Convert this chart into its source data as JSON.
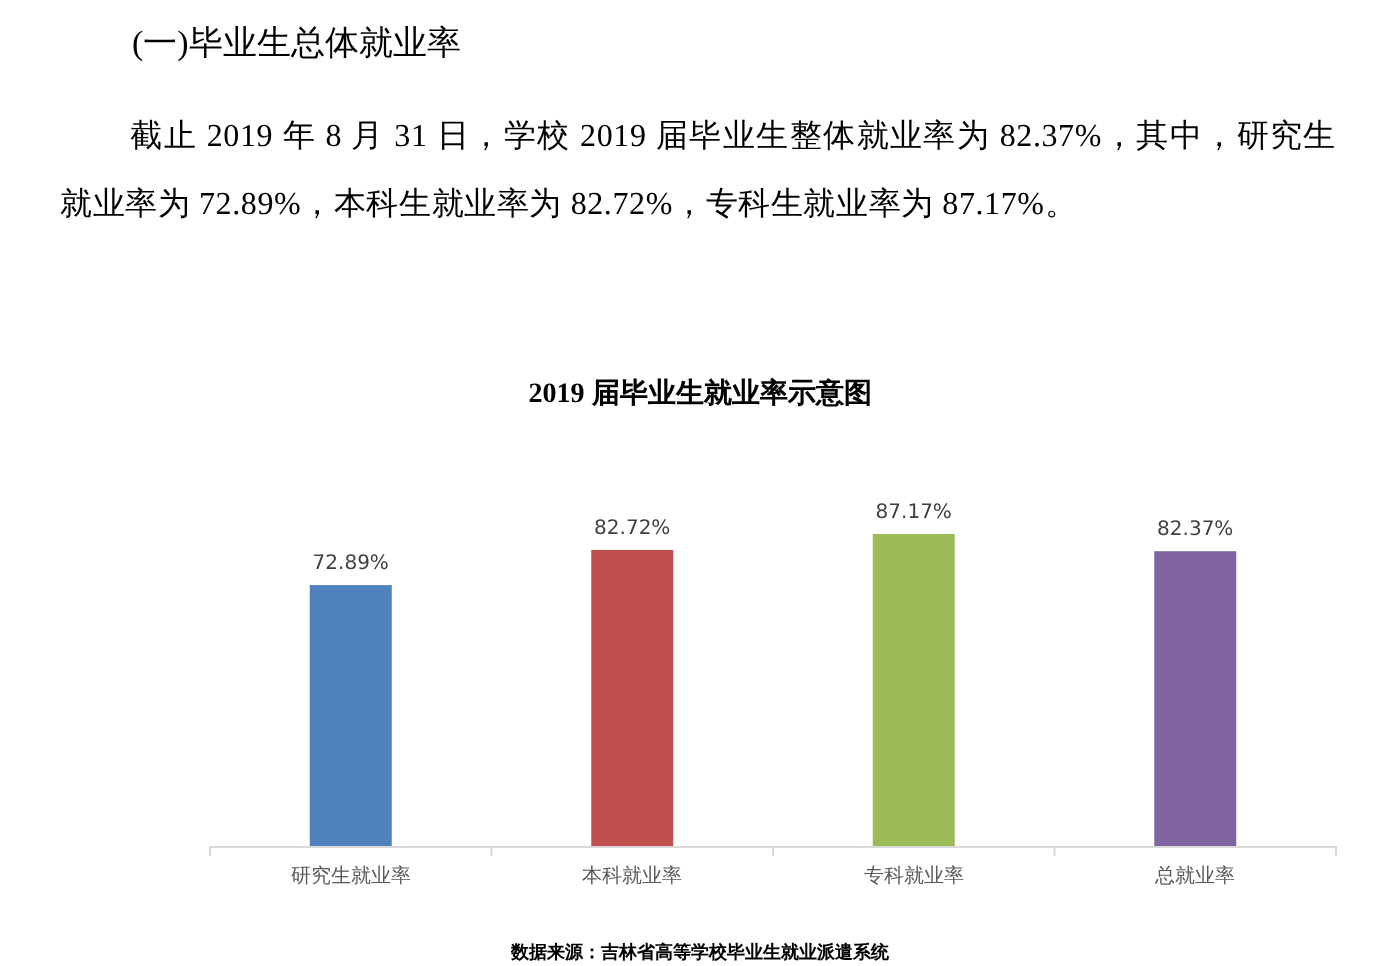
{
  "chart_data": {
    "type": "bar",
    "title": "2019 届毕业生就业率示意图",
    "categories": [
      "研究生就业率",
      "本科就业率",
      "专科就业率",
      "总就业率"
    ],
    "values": [
      72.89,
      82.72,
      87.17,
      82.37
    ],
    "value_labels": [
      "72.89%",
      "82.72%",
      "87.17%",
      "82.37%"
    ],
    "colors": [
      "#4f81bd",
      "#c0504d",
      "#9bbb59",
      "#8064a2"
    ],
    "annotations": [
      "(一)毕业生总体就业率",
      "截止 2019 年 8 月 31 日，学校 2019 届毕业生整体就业率为 82.37%，其中，研究生就业率为 72.89%，本科生就业率为 82.72%，专科生就业率为 87.17%。",
      "数据来源：吉林省高等学校毕业生就业派遣系统"
    ]
  }
}
